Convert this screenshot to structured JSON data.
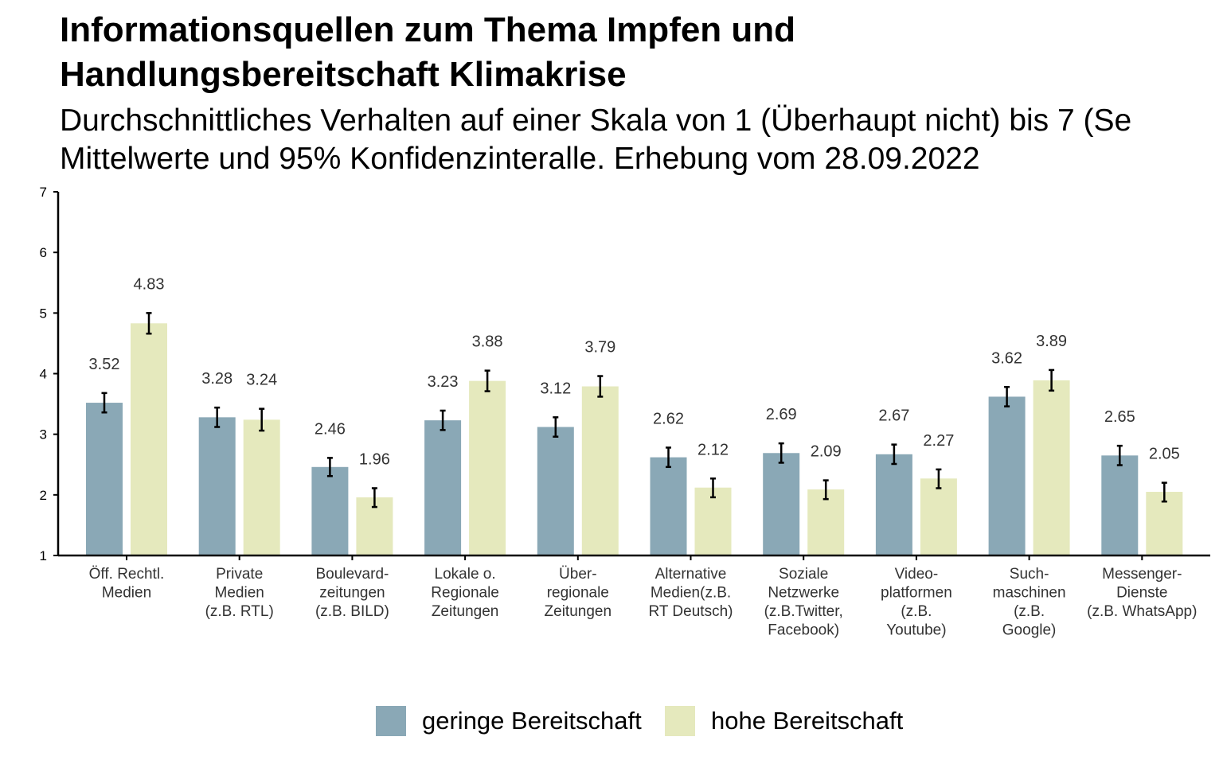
{
  "title": "Informationsquellen zum Thema Impfen und Handlungsbereitschaft Klimakrise",
  "title_lines": [
    "Informationsquellen zum Thema Impfen und",
    "Handlungsbereitschaft Klimakrise"
  ],
  "subtitle_lines": [
    "Durchschnittliches Verhalten auf einer Skala von 1 (Überhaupt nicht) bis 7 (Se",
    "Mittelwerte und 95% Konfidenzinteralle. Erhebung vom 28.09.2022"
  ],
  "colors": {
    "geringe": "#8aa8b6",
    "hohe": "#e5e9bd",
    "axis": "#000000",
    "label": "#333333"
  },
  "chart_data": {
    "type": "bar",
    "ylim": [
      1,
      7
    ],
    "yticks": [
      "1",
      "2",
      "3",
      "4",
      "5",
      "6",
      "7"
    ],
    "grid": false,
    "legend_position": "bottom",
    "categories": [
      [
        "Öff. Rechtl.",
        "Medien"
      ],
      [
        "Private",
        "Medien",
        "(z.B. RTL)"
      ],
      [
        "Boulevard-",
        "zeitungen",
        "(z.B. BILD)"
      ],
      [
        "Lokale o.",
        "Regionale",
        "Zeitungen"
      ],
      [
        "Über-",
        "regionale",
        "Zeitungen"
      ],
      [
        "Alternative",
        "Medien(z.B.",
        "RT Deutsch)"
      ],
      [
        "Soziale",
        "Netzwerke",
        "(z.B.Twitter,",
        "Facebook)"
      ],
      [
        "Video-",
        "platformen",
        "(z.B.",
        "Youtube)"
      ],
      [
        "Such-",
        "maschinen",
        "(z.B.",
        "Google)"
      ],
      [
        "Messenger-",
        "Dienste",
        "(z.B. WhatsApp)"
      ]
    ],
    "series": [
      {
        "name": "geringe Bereitschaft",
        "values": [
          3.52,
          3.28,
          2.46,
          3.23,
          3.12,
          2.62,
          2.69,
          2.67,
          3.62,
          2.65
        ],
        "labels": [
          "3.52",
          "3.28",
          "2.46",
          "3.23",
          "3.12",
          "2.62",
          "2.69",
          "2.67",
          "3.62",
          "2.65"
        ],
        "ci_low": [
          3.36,
          3.12,
          2.31,
          3.07,
          2.96,
          2.46,
          2.53,
          2.51,
          3.46,
          2.49
        ],
        "ci_high": [
          3.68,
          3.44,
          2.61,
          3.39,
          3.28,
          2.78,
          2.85,
          2.83,
          3.78,
          2.81
        ]
      },
      {
        "name": "hohe Bereitschaft",
        "values": [
          4.83,
          3.24,
          1.96,
          3.88,
          3.79,
          2.12,
          2.09,
          2.27,
          3.89,
          2.05
        ],
        "labels": [
          "4.83",
          "3.24",
          "1.96",
          "3.88",
          "3.79",
          "2.12",
          "2.09",
          "2.27",
          "3.89",
          "2.05"
        ],
        "ci_low": [
          4.66,
          3.06,
          1.8,
          3.71,
          3.62,
          1.96,
          1.93,
          2.11,
          3.72,
          1.89
        ],
        "ci_high": [
          5.0,
          3.42,
          2.11,
          4.05,
          3.96,
          2.27,
          2.24,
          2.42,
          4.06,
          2.2
        ]
      }
    ]
  }
}
